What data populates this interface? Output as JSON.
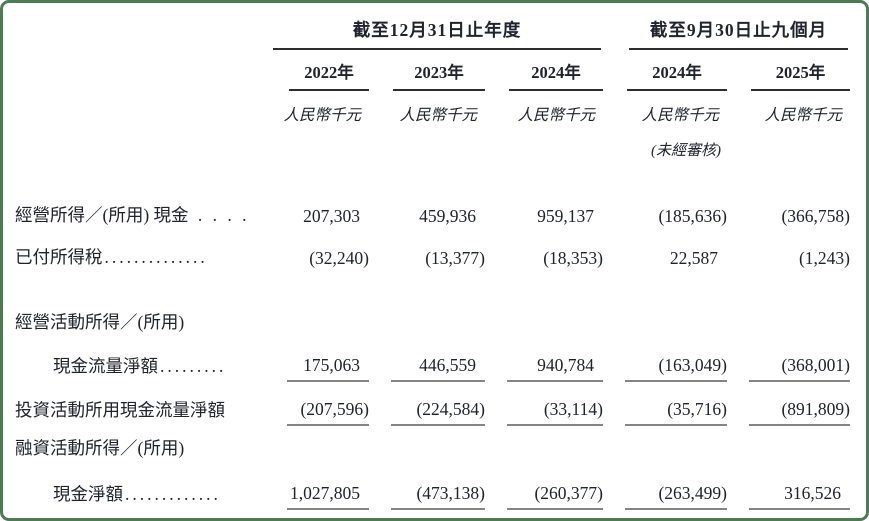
{
  "page": {
    "border_color": "#4e7b55",
    "text_color": "#20222e"
  },
  "table": {
    "column_groups": [
      {
        "title": "截至12月31日止年度",
        "span": 3
      },
      {
        "title": "截至9月30日止九個月",
        "span": 2
      }
    ],
    "year_headers": [
      "2022年",
      "2023年",
      "2024年",
      "2024年",
      "2025年"
    ],
    "unit_label": "人民幣千元",
    "unaudited_note": "(未經審核)",
    "unaudited_col_index": 3,
    "rows": [
      {
        "label": "經營所得／(所用) 現金",
        "leader_dots": " . . . .",
        "indent": false,
        "gap_before": true,
        "underline": false,
        "values": [
          "207,303",
          "459,936",
          "959,137",
          "(185,636)",
          "(366,758)"
        ]
      },
      {
        "label": "已付所得稅",
        "leader_dots": "..............",
        "indent": false,
        "gap_before": false,
        "underline": false,
        "values": [
          "(32,240)",
          "(13,377)",
          "(18,353)",
          "22,587",
          "(1,243)"
        ]
      },
      {
        "label": "經營活動所得／(所用)",
        "leader_dots": "",
        "indent": false,
        "gap_before": true,
        "underline": false,
        "category": true,
        "values": [
          "",
          "",
          "",
          "",
          ""
        ]
      },
      {
        "label": "現金流量淨額",
        "leader_dots": ".........",
        "indent": true,
        "gap_before": false,
        "underline": true,
        "values": [
          "175,063",
          "446,559",
          "940,784",
          "(163,049)",
          "(368,001)"
        ]
      },
      {
        "label": "投資活動所用現金流量淨額",
        "leader_dots": "",
        "indent": false,
        "gap_before": false,
        "underline": true,
        "values": [
          "(207,596)",
          "(224,584)",
          "(33,114)",
          "(35,716)",
          "(891,809)"
        ]
      },
      {
        "label": "融資活動所得／(所用)",
        "leader_dots": "",
        "indent": false,
        "gap_before": false,
        "underline": false,
        "category": true,
        "values": [
          "",
          "",
          "",
          "",
          ""
        ]
      },
      {
        "label": "現金淨額",
        "leader_dots": ".............",
        "indent": true,
        "gap_before": false,
        "underline": true,
        "last": true,
        "values": [
          "1,027,805",
          "(473,138)",
          "(260,377)",
          "(263,499)",
          "316,526"
        ]
      }
    ]
  }
}
